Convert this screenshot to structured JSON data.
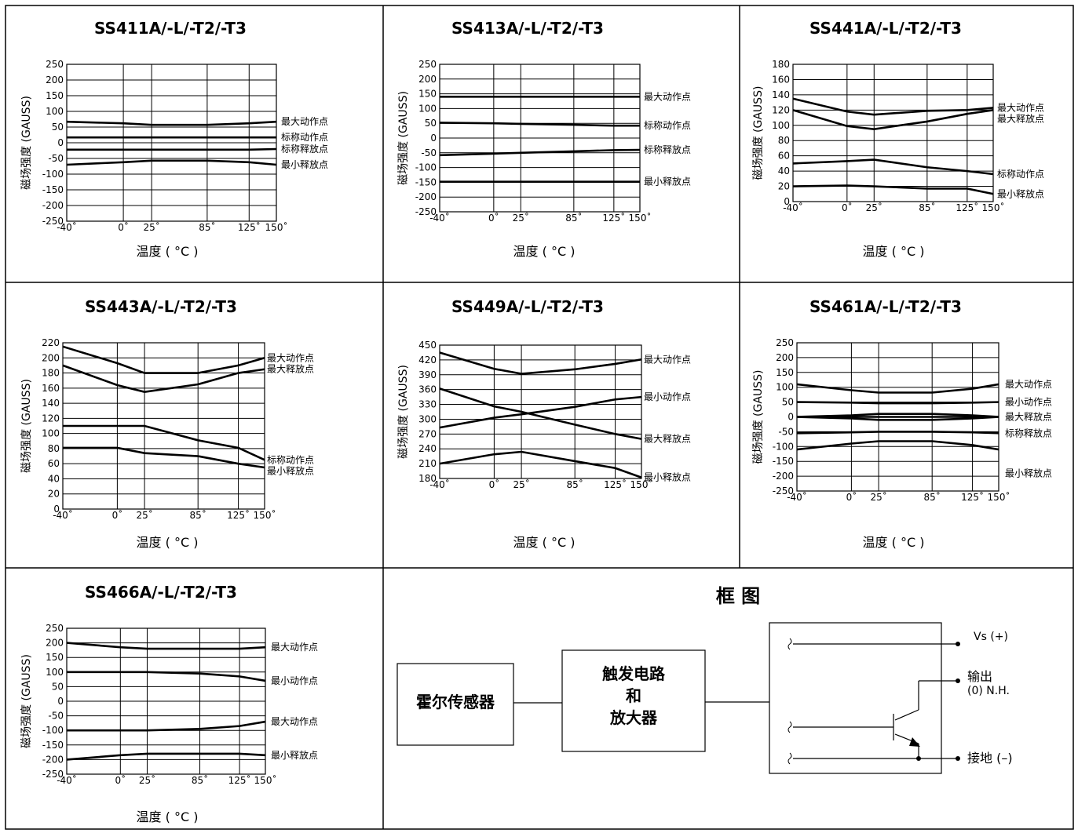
{
  "common": {
    "ylabel": "磁场强度 (GAUSS)",
    "xlabel": "温度 ( °C )",
    "xticks": [
      "-40˚",
      "0˚",
      "25˚",
      "85˚",
      "125˚",
      "150˚"
    ]
  },
  "charts": [
    {
      "type": "line",
      "title": "SS411A/-L/-T2/-T3",
      "x": [
        -40,
        0,
        25,
        85,
        125,
        150
      ],
      "ylim": [
        -250,
        250
      ],
      "yticks": [
        "250",
        "200",
        "150",
        "100",
        "50",
        "0",
        "-50",
        "-100",
        "-150",
        "-200",
        "-250"
      ],
      "series": [
        {
          "name": "最大动作点",
          "color": "#000000",
          "values": [
            67,
            62,
            57,
            57,
            62,
            67
          ]
        },
        {
          "name": "标称动作点",
          "color": "#000000",
          "values": [
            17,
            17,
            17,
            17,
            17,
            17
          ]
        },
        {
          "name": "标称释放点",
          "color": "#000000",
          "values": [
            -22,
            -22,
            -22,
            -22,
            -22,
            -20
          ]
        },
        {
          "name": "最小释放点",
          "color": "#000000",
          "values": [
            -70,
            -62,
            -57,
            -57,
            -62,
            -70
          ]
        }
      ]
    },
    {
      "type": "line",
      "title": "SS413A/-L/-T2/-T3",
      "x": [
        -40,
        0,
        25,
        85,
        125,
        150
      ],
      "ylim": [
        -250,
        250
      ],
      "yticks": [
        "250",
        "200",
        "150",
        "100",
        "50",
        "0",
        "-50",
        "-100",
        "-150",
        "-200",
        "-250"
      ],
      "series": [
        {
          "name": "最大动作点",
          "color": "#000000",
          "values": [
            140,
            140,
            140,
            140,
            140,
            140
          ]
        },
        {
          "name": "标称动作点",
          "color": "#000000",
          "values": [
            52,
            50,
            48,
            45,
            42,
            42
          ]
        },
        {
          "name": "标称释放点",
          "color": "#000000",
          "values": [
            -58,
            -53,
            -50,
            -45,
            -41,
            -40
          ]
        },
        {
          "name": "最小释放点",
          "color": "#000000",
          "values": [
            -148,
            -148,
            -148,
            -148,
            -148,
            -148
          ]
        }
      ]
    },
    {
      "type": "line",
      "title": "SS441A/-L/-T2/-T3",
      "x": [
        -40,
        0,
        25,
        85,
        125,
        150
      ],
      "ylim": [
        0,
        180
      ],
      "yticks": [
        "180",
        "160",
        "140",
        "120",
        "100",
        "80",
        "60",
        "40",
        "20",
        "0"
      ],
      "series": [
        {
          "name": "最大动作点",
          "color": "#000000",
          "values": [
            135,
            118,
            114,
            119,
            120,
            123
          ]
        },
        {
          "name": "最大释放点",
          "color": "#000000",
          "values": [
            120,
            99,
            95,
            105,
            115,
            120
          ]
        },
        {
          "name": "标称动作点",
          "color": "#000000",
          "values": [
            50,
            53,
            55,
            45,
            40,
            36
          ]
        },
        {
          "name": "最小释放点",
          "color": "#000000",
          "values": [
            20,
            21,
            20,
            17,
            17,
            10
          ]
        }
      ]
    },
    {
      "type": "line",
      "title": "SS443A/-L/-T2/-T3",
      "x": [
        -40,
        0,
        25,
        85,
        125,
        150
      ],
      "ylim": [
        0,
        220
      ],
      "yticks": [
        "220",
        "200",
        "180",
        "160",
        "140",
        "120",
        "100",
        "80",
        "60",
        "40",
        "20",
        "0"
      ],
      "series": [
        {
          "name": "最大动作点",
          "color": "#000000",
          "values": [
            215,
            193,
            180,
            180,
            190,
            200
          ]
        },
        {
          "name": "最大释放点",
          "color": "#000000",
          "values": [
            190,
            164,
            155,
            165,
            180,
            185
          ]
        },
        {
          "name": "标称动作点",
          "color": "#000000",
          "values": [
            110,
            110,
            110,
            91,
            81,
            65
          ]
        },
        {
          "name": "最小释放点",
          "color": "#000000",
          "values": [
            81,
            81,
            74,
            70,
            60,
            55
          ]
        }
      ]
    },
    {
      "type": "line",
      "title": "SS449A/-L/-T2/-T3",
      "x": [
        -40,
        0,
        25,
        85,
        125,
        150
      ],
      "ylim": [
        180,
        450
      ],
      "yticks": [
        "450",
        "420",
        "390",
        "360",
        "330",
        "300",
        "270",
        "240",
        "210",
        "180"
      ],
      "series": [
        {
          "name": "最大动作点",
          "color": "#000000",
          "values": [
            435,
            402,
            392,
            401,
            412,
            421
          ]
        },
        {
          "name": "最小动作点",
          "color": "#000000",
          "values": [
            283,
            303,
            310,
            325,
            340,
            345
          ]
        },
        {
          "name": "最大释放点",
          "color": "#000000",
          "values": [
            362,
            326,
            315,
            289,
            270,
            260
          ]
        },
        {
          "name": "最小释放点",
          "color": "#000000",
          "values": [
            210,
            229,
            234,
            215,
            201,
            182
          ]
        }
      ]
    },
    {
      "type": "line",
      "title": "SS461A/-L/-T2/-T3",
      "x": [
        -40,
        0,
        25,
        85,
        125,
        150
      ],
      "ylim": [
        -250,
        250
      ],
      "yticks": [
        "250",
        "200",
        "150",
        "100",
        "50",
        "0",
        "-50",
        "-100",
        "-150",
        "-200",
        "-250"
      ],
      "series": [
        {
          "name": "最大动作点",
          "color": "#000000",
          "values": [
            110,
            90,
            82,
            82,
            95,
            110
          ]
        },
        {
          "name": "最小动作点",
          "color": "#000000",
          "values": [
            50,
            48,
            46,
            46,
            48,
            50
          ]
        },
        {
          "name": "最大释放点",
          "color": "#000000",
          "values": [
            0,
            0,
            0,
            0,
            0,
            0
          ]
        },
        {
          "name": "最大动作点",
          "color": "#000000",
          "values": [
            0,
            5,
            10,
            10,
            5,
            0
          ]
        },
        {
          "name": "最小释放点",
          "color": "#000000",
          "values": [
            0,
            -5,
            -10,
            -10,
            -5,
            0
          ]
        },
        {
          "name": "标称释放点",
          "color": "#000000",
          "values": [
            -55,
            -52,
            -50,
            -50,
            -52,
            -55
          ]
        },
        {
          "name": "最小释放点",
          "color": "#000000",
          "values": [
            -110,
            -90,
            -82,
            -82,
            -95,
            -110
          ]
        }
      ],
      "legend_labels": [
        "最大动作点",
        "最小动作点",
        "最大释放点",
        "标称释放点",
        "最小释放点"
      ]
    },
    {
      "type": "line",
      "title": "SS466A/-L/-T2/-T3",
      "x": [
        -40,
        0,
        25,
        85,
        125,
        150
      ],
      "ylim": [
        -250,
        250
      ],
      "yticks": [
        "250",
        "200",
        "150",
        "100",
        "50",
        "0",
        "-50",
        "-100",
        "-150",
        "-200",
        "-250"
      ],
      "series": [
        {
          "name": "最大动作点",
          "color": "#000000",
          "values": [
            200,
            185,
            180,
            180,
            180,
            185
          ]
        },
        {
          "name": "最小动作点",
          "color": "#000000",
          "values": [
            100,
            100,
            100,
            95,
            85,
            70
          ]
        },
        {
          "name": "最大动作点",
          "color": "#000000",
          "values": [
            -100,
            -100,
            -100,
            -95,
            -85,
            -70
          ]
        },
        {
          "name": "最小释放点",
          "color": "#000000",
          "values": [
            -200,
            -185,
            -180,
            -180,
            -180,
            -185
          ]
        }
      ]
    }
  ],
  "block_diagram": {
    "title": "框 图",
    "hall_sensor": "霍尔传感器",
    "trigger": [
      "触发电路",
      "和",
      "放大器"
    ],
    "vs": "Vs (+)",
    "output": [
      "输出",
      "(0) N.H."
    ],
    "ground": "接地 (–)"
  }
}
